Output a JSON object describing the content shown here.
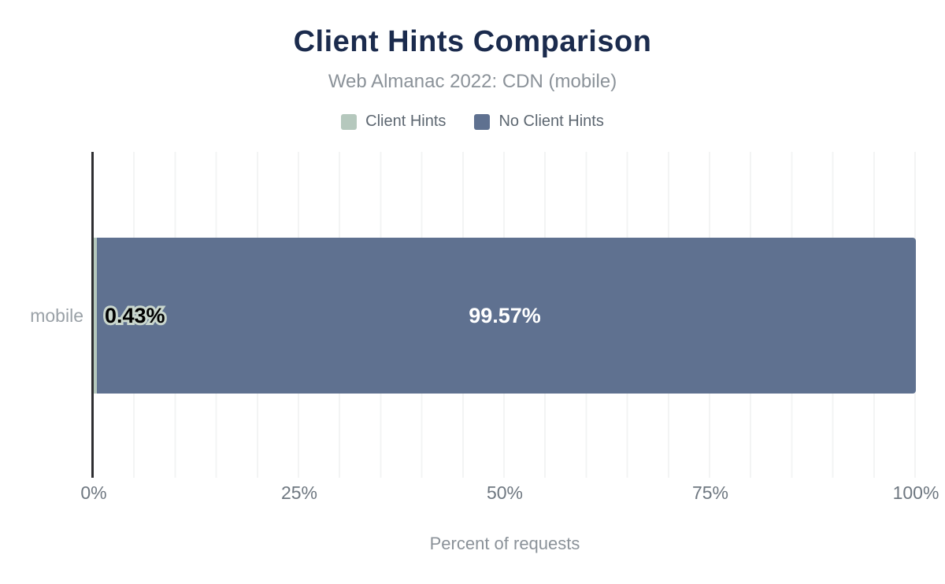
{
  "header": {
    "title": "Client Hints Comparison",
    "subtitle": "Web Almanac 2022: CDN (mobile)"
  },
  "legend": {
    "items": [
      {
        "label": "Client Hints",
        "color": "#b5c8bd"
      },
      {
        "label": "No Client Hints",
        "color": "#5f7190"
      }
    ]
  },
  "chart_data": {
    "type": "bar",
    "orientation": "horizontal",
    "stacked": true,
    "categories": [
      "mobile"
    ],
    "series": [
      {
        "name": "Client Hints",
        "values": [
          0.43
        ],
        "color": "#b5c8bd",
        "value_labels": [
          "0.43%"
        ]
      },
      {
        "name": "No Client Hints",
        "values": [
          99.57
        ],
        "color": "#5f7190",
        "value_labels": [
          "99.57%"
        ]
      }
    ],
    "title": "Client Hints Comparison",
    "subtitle": "Web Almanac 2022: CDN (mobile)",
    "xlabel": "Percent of requests",
    "ylabel": "",
    "xlim": [
      0,
      100
    ],
    "x_ticks": [
      {
        "value": 0,
        "label": "0%"
      },
      {
        "value": 25,
        "label": "25%"
      },
      {
        "value": 50,
        "label": "50%"
      },
      {
        "value": 75,
        "label": "75%"
      },
      {
        "value": 100,
        "label": "100%"
      }
    ],
    "grid": {
      "vertical_interval_percent": 5,
      "color": "#f3f4f4"
    },
    "legend_position": "top"
  },
  "colors": {
    "title": "#1b2b4d",
    "subtitle": "#8b9299",
    "axis_line": "#2e2e31",
    "tick_text": "#6e7780",
    "category_text": "#9aa1a7",
    "value_label_big": "#ffffff",
    "value_label_small": "#000000",
    "value_label_halo": "#c9d6cd"
  }
}
